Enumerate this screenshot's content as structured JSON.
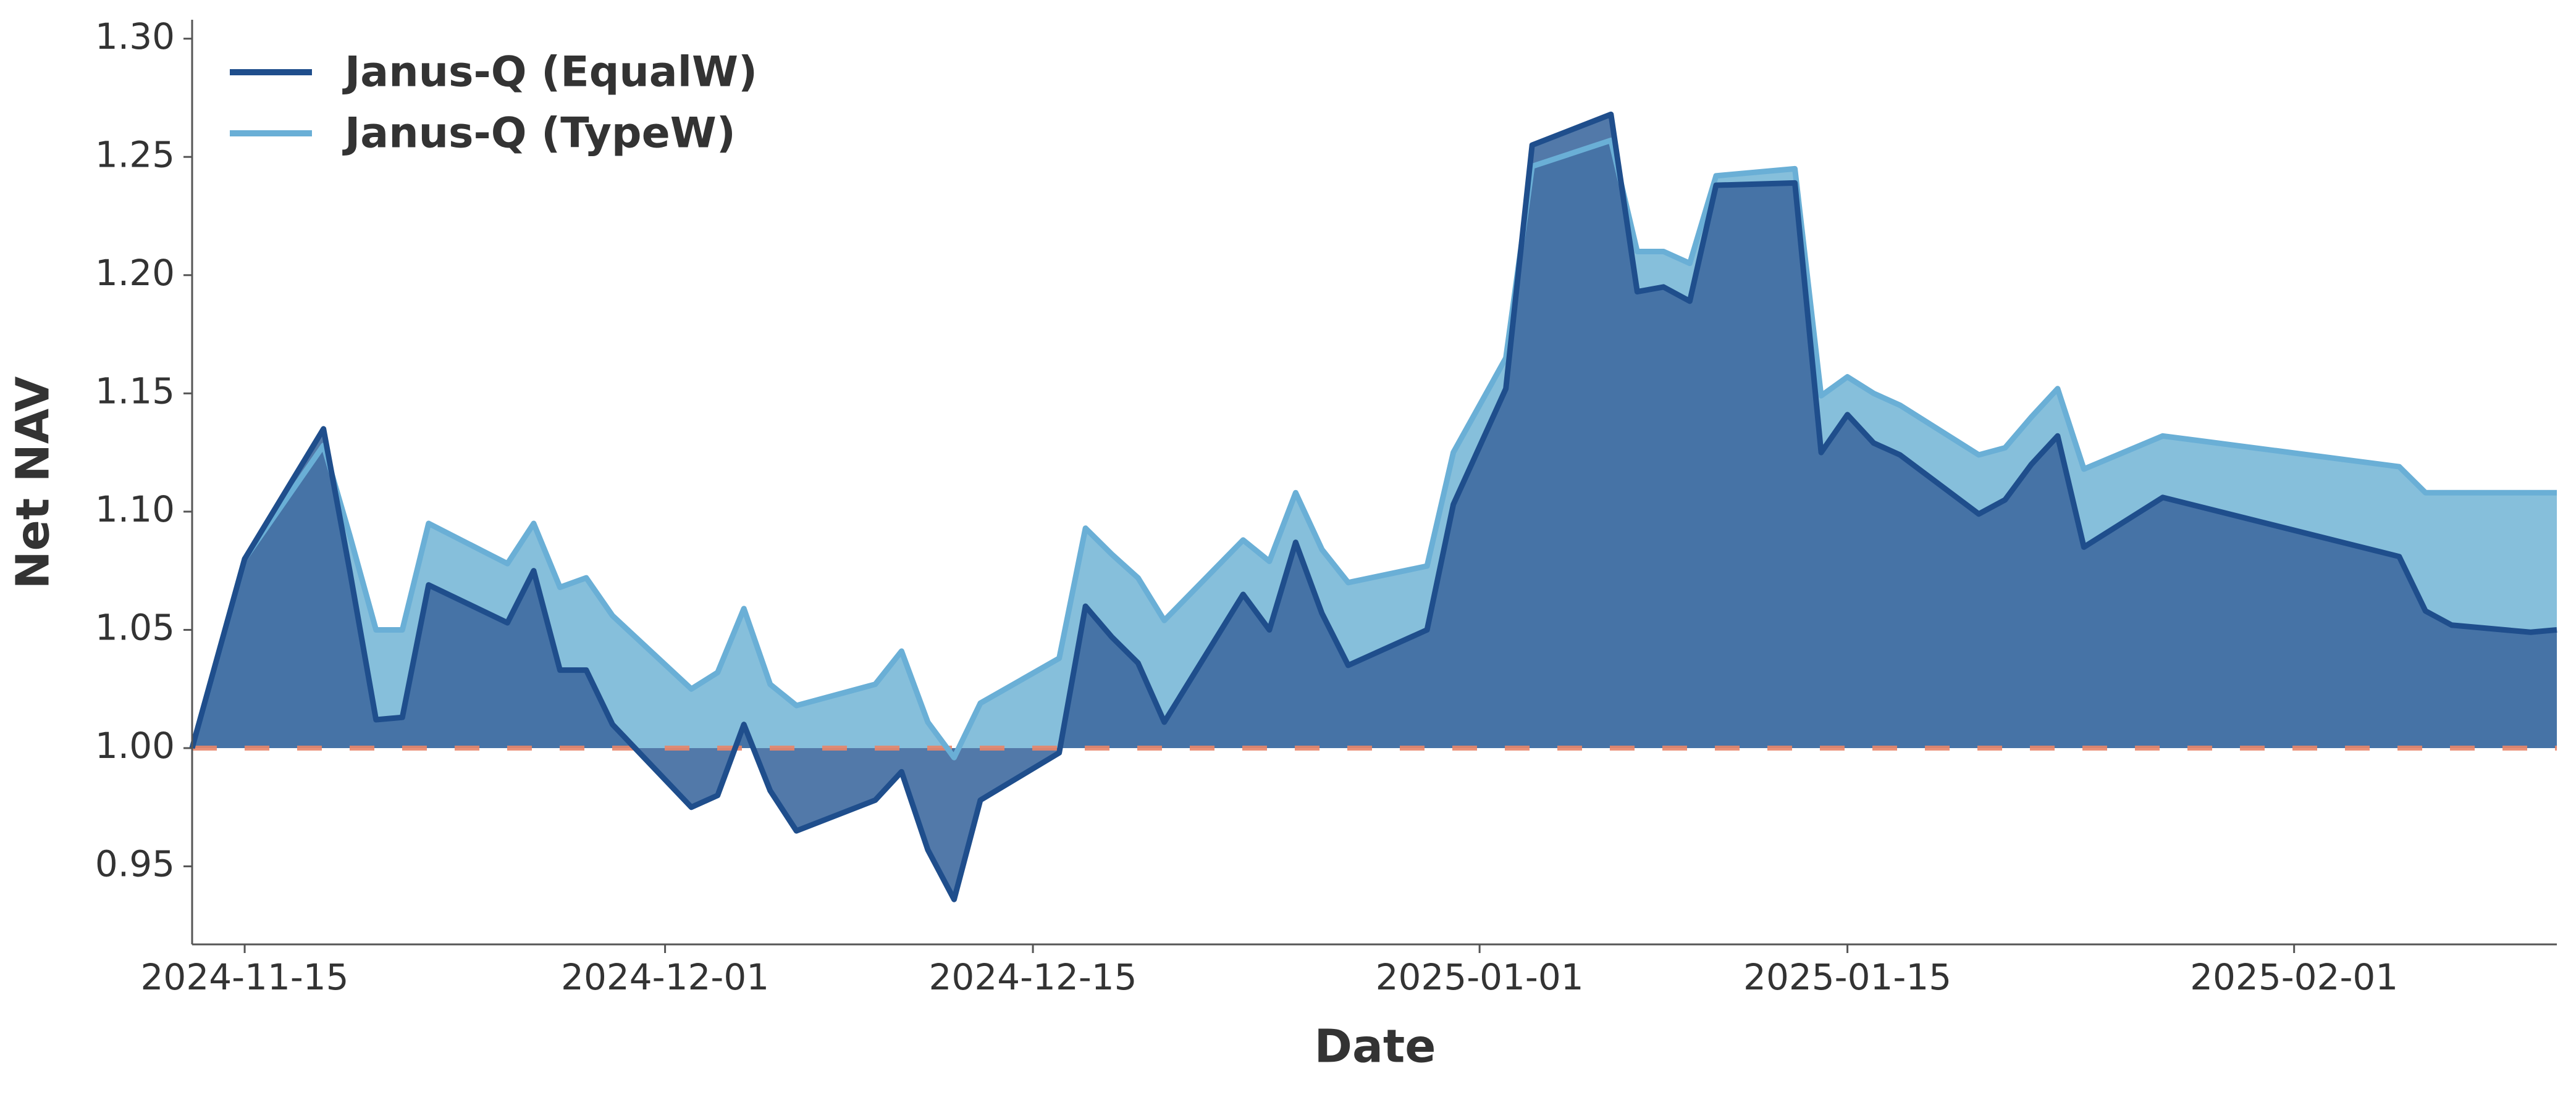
{
  "chart_data": {
    "type": "line",
    "x_label": "Date",
    "y_label": "Net NAV",
    "x": [
      "2024-11-13",
      "2024-11-15",
      "2024-11-18",
      "2024-11-19",
      "2024-11-20",
      "2024-11-21",
      "2024-11-22",
      "2024-11-25",
      "2024-11-26",
      "2024-11-27",
      "2024-11-28",
      "2024-11-29",
      "2024-12-02",
      "2024-12-03",
      "2024-12-04",
      "2024-12-05",
      "2024-12-06",
      "2024-12-09",
      "2024-12-10",
      "2024-12-11",
      "2024-12-12",
      "2024-12-13",
      "2024-12-16",
      "2024-12-17",
      "2024-12-18",
      "2024-12-19",
      "2024-12-20",
      "2024-12-23",
      "2024-12-24",
      "2024-12-25",
      "2024-12-26",
      "2024-12-27",
      "2024-12-30",
      "2024-12-31",
      "2025-01-02",
      "2025-01-03",
      "2025-01-06",
      "2025-01-07",
      "2025-01-08",
      "2025-01-09",
      "2025-01-10",
      "2025-01-13",
      "2025-01-14",
      "2025-01-15",
      "2025-01-16",
      "2025-01-17",
      "2025-01-20",
      "2025-01-21",
      "2025-01-22",
      "2025-01-23",
      "2025-01-24",
      "2025-01-27",
      "2025-02-05",
      "2025-02-06",
      "2025-02-07",
      "2025-02-10",
      "2025-02-11"
    ],
    "series": [
      {
        "name": "Janus-Q (EqualW)",
        "color": "#1f4e8c",
        "fill": "#3f6aa0",
        "values": [
          1.0,
          1.08,
          1.135,
          1.075,
          1.012,
          1.013,
          1.069,
          1.053,
          1.075,
          1.033,
          1.033,
          1.01,
          0.975,
          0.98,
          1.01,
          0.982,
          0.965,
          0.978,
          0.99,
          0.957,
          0.936,
          0.978,
          0.998,
          1.06,
          1.047,
          1.036,
          1.011,
          1.065,
          1.05,
          1.087,
          1.057,
          1.035,
          1.05,
          1.103,
          1.152,
          1.255,
          1.268,
          1.193,
          1.195,
          1.189,
          1.238,
          1.239,
          1.125,
          1.141,
          1.129,
          1.124,
          1.099,
          1.105,
          1.12,
          1.132,
          1.085,
          1.106,
          1.081,
          1.058,
          1.052,
          1.049,
          1.05
        ]
      },
      {
        "name": "Janus-Q (TypeW)",
        "color": "#6aafd6",
        "fill": "#7fbcd9",
        "values": [
          1.0,
          1.08,
          1.128,
          1.09,
          1.05,
          1.05,
          1.095,
          1.078,
          1.095,
          1.068,
          1.072,
          1.056,
          1.025,
          1.032,
          1.059,
          1.027,
          1.018,
          1.027,
          1.041,
          1.011,
          0.996,
          1.019,
          1.038,
          1.093,
          1.082,
          1.072,
          1.054,
          1.088,
          1.079,
          1.108,
          1.084,
          1.07,
          1.077,
          1.125,
          1.165,
          1.246,
          1.257,
          1.21,
          1.21,
          1.205,
          1.242,
          1.245,
          1.149,
          1.157,
          1.15,
          1.145,
          1.124,
          1.127,
          1.14,
          1.152,
          1.118,
          1.132,
          1.119,
          1.108,
          1.108,
          1.108,
          1.108
        ]
      }
    ],
    "baseline": 1,
    "baseline_color": "#e8866a",
    "xlim": [
      "2024-11-13",
      "2025-02-11"
    ],
    "ylim": [
      0.917,
      1.308
    ],
    "xticks": [
      "2024-11-15",
      "2024-12-01",
      "2024-12-15",
      "2025-01-01",
      "2025-01-15",
      "2025-02-01"
    ],
    "yticks": [
      0.95,
      {
        "value": 1.0,
        "label": "1.00"
      },
      1.05,
      {
        "value": 1.1,
        "label": "1.10"
      },
      1.15,
      {
        "value": 1.2,
        "label": "1.20"
      },
      1.25,
      {
        "value": 1.3,
        "label": "1.30"
      }
    ],
    "legend": "upper left",
    "grid": false
  }
}
